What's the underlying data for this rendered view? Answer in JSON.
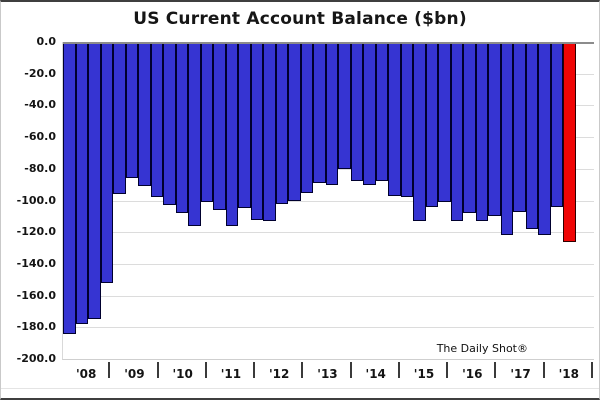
{
  "chart_data": {
    "type": "bar",
    "title": "US Current Account Balance ($bn)",
    "annotation": "The Daily Shot®",
    "ylim": [
      -200,
      0
    ],
    "y_tick_labels": [
      "0.0",
      "-20.0",
      "-40.0",
      "-60.0",
      "-80.0",
      "-100.0",
      "-120.0",
      "-140.0",
      "-160.0",
      "-180.0",
      "-200.0"
    ],
    "x_year_labels": [
      "'08",
      "'09",
      "'10",
      "'11",
      "'12",
      "'13",
      "'14",
      "'15",
      "'16",
      "'17",
      "'18"
    ],
    "bars_per_year": 4,
    "values": [
      -184,
      -178,
      -175,
      -152,
      -96,
      -86,
      -91,
      -98,
      -103,
      -108,
      -116,
      -101,
      -106,
      -116,
      -105,
      -112,
      -113,
      -102,
      -100,
      -95,
      -89,
      -90,
      -80,
      -88,
      -90,
      -88,
      -97,
      -98,
      -113,
      -104,
      -101,
      -113,
      -108,
      -113,
      -110,
      -122,
      -107,
      -118,
      -122,
      -104,
      -126
    ],
    "highlight_last_bar": true,
    "grid": "horizontal",
    "legend": "none",
    "colors": {
      "bar_fill": "#3634d2",
      "bar_border": "#00002e",
      "highlight_fill": "#f00505",
      "highlight_border": "#2e0000",
      "gridline": "#dcdcdc",
      "zero_line": "#8c8c8c",
      "tick": "#3a3a3a",
      "text": "#141414"
    }
  }
}
